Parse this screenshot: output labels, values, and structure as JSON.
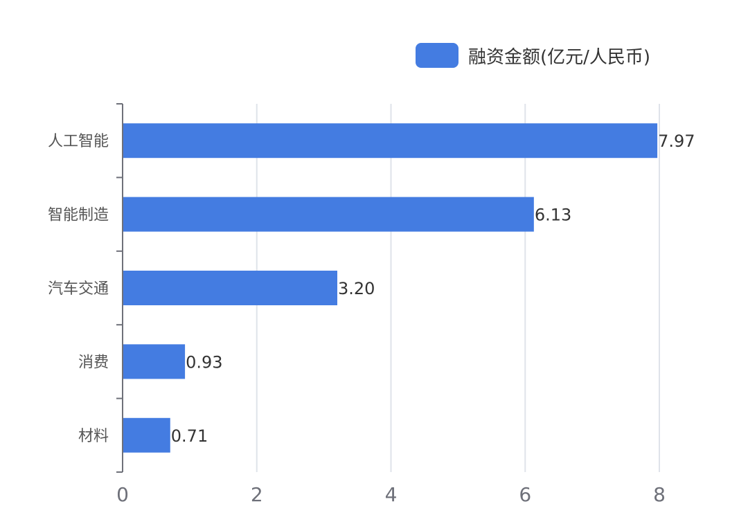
{
  "chart_data": {
    "type": "bar",
    "orientation": "horizontal",
    "categories": [
      "人工智能",
      "智能制造",
      "汽车交通",
      "消费",
      "材料"
    ],
    "series": [
      {
        "name": "融资金额(亿元/人民币)",
        "values": [
          7.97,
          6.13,
          3.2,
          0.93,
          0.71
        ],
        "labels": [
          "7.97",
          "6.13",
          "3.20",
          "0.93",
          "0.71"
        ]
      }
    ],
    "xlim": [
      0,
      8
    ],
    "xticks": [
      0,
      2,
      4,
      6,
      8
    ],
    "grid": "vertical",
    "legend_position": "top-right",
    "bar_color": "#447ce1"
  }
}
